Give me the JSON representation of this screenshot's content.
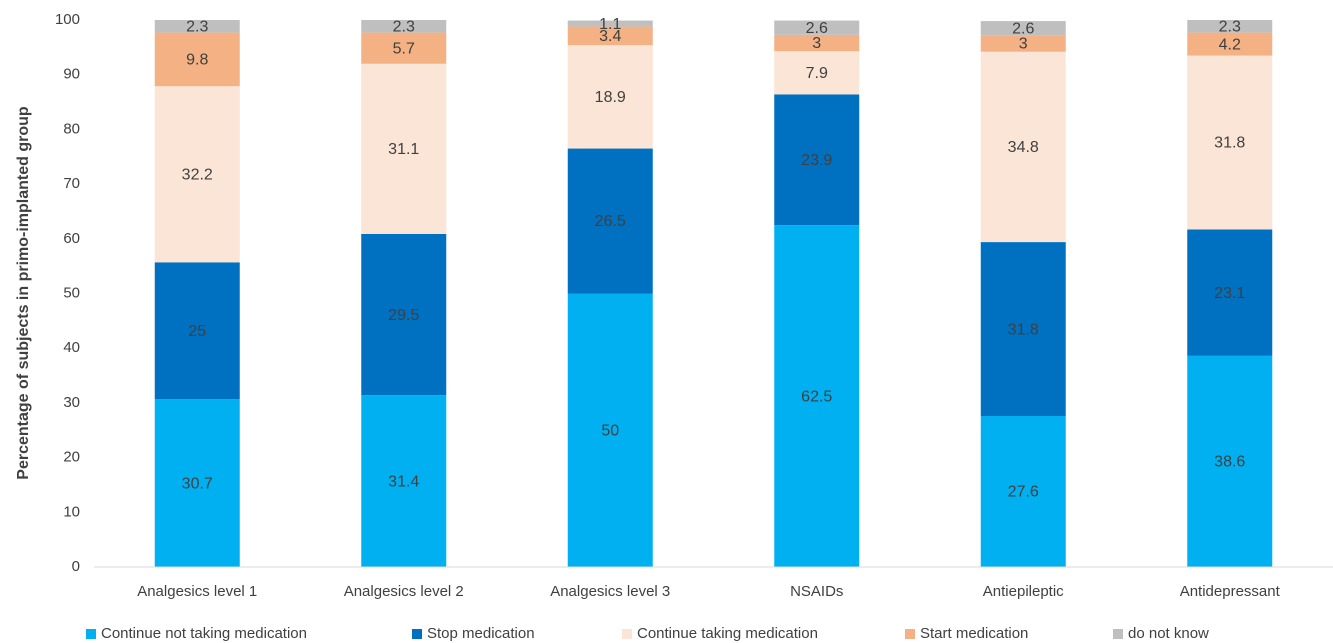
{
  "chart_data": {
    "type": "stacked_bar",
    "y_label": "Percentage of subjects in primo-implanted group",
    "categories": [
      "Analgesics level 1",
      "Analgesics level 2",
      "Analgesics level 3",
      "NSAIDs",
      "Antiepileptic",
      "Antidepressant"
    ],
    "series": [
      {
        "name": "Continue not taking medication",
        "color": "#00b0f0",
        "values": [
          30.7,
          31.4,
          50,
          62.5,
          27.6,
          38.6
        ]
      },
      {
        "name": "Stop medication",
        "color": "#0070c0",
        "values": [
          25,
          29.5,
          26.5,
          23.9,
          31.8,
          23.1
        ]
      },
      {
        "name": "Continue taking medication",
        "color": "#fbe5d6",
        "values": [
          32.2,
          31.1,
          18.9,
          7.9,
          34.8,
          31.8
        ]
      },
      {
        "name": "Start medication",
        "color": "#f4b183",
        "values": [
          9.8,
          5.7,
          3.4,
          3,
          3,
          4.2
        ]
      },
      {
        "name": "do not know",
        "color": "#bfbfbf",
        "values": [
          2.3,
          2.3,
          1.1,
          2.6,
          2.6,
          2.3
        ]
      }
    ],
    "ylim": [
      0,
      100
    ],
    "yticks": [
      0,
      10,
      20,
      30,
      40,
      50,
      60,
      70,
      80,
      90,
      100
    ],
    "legend": "bottom"
  }
}
